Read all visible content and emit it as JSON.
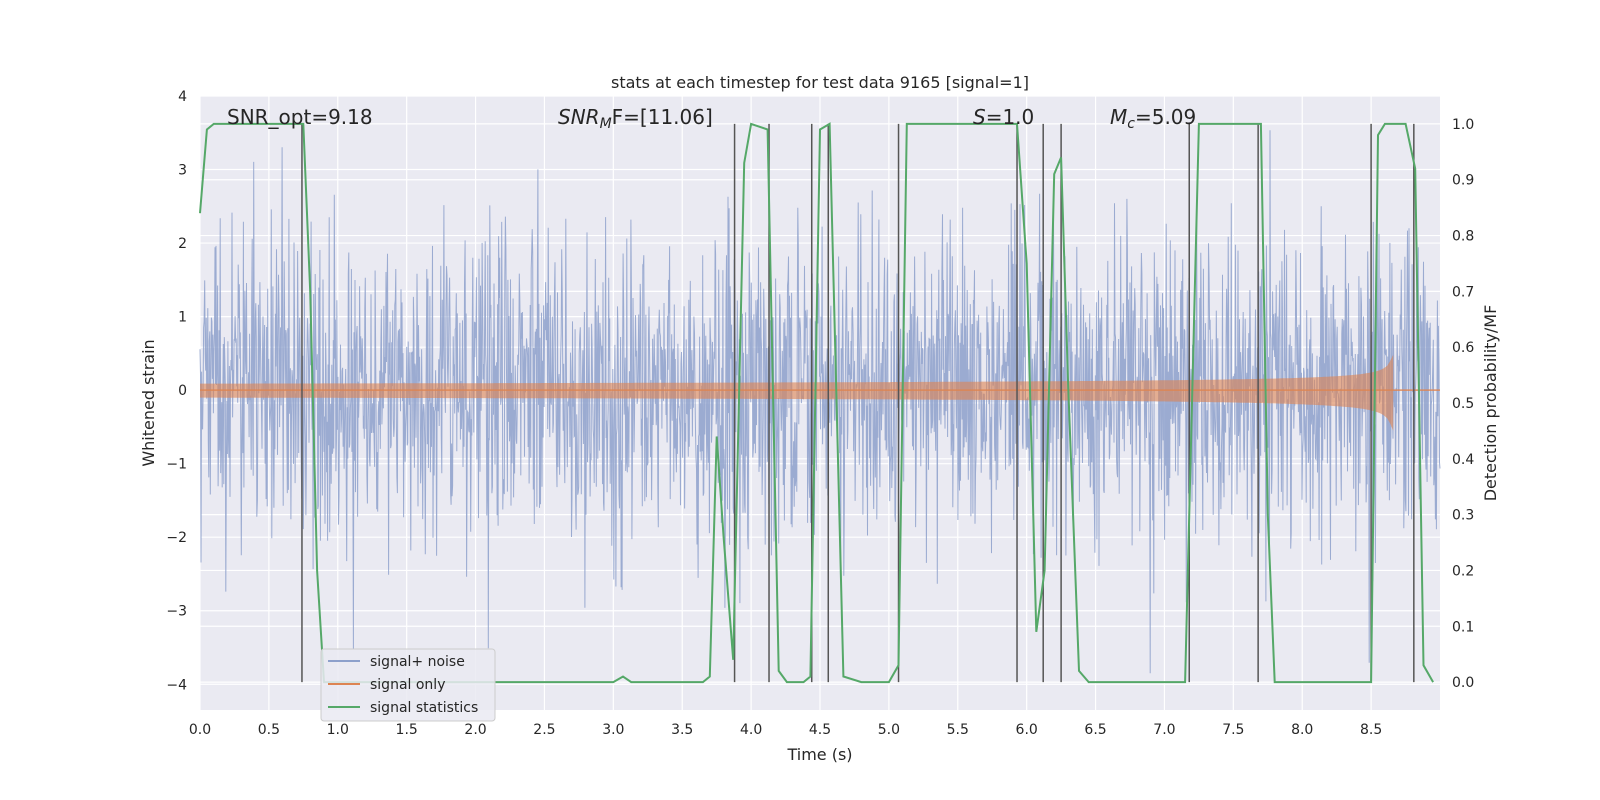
{
  "chart_data": {
    "type": "line",
    "title": "stats at each timestep for test data 9165 [signal=1]",
    "xlabel": "Time (s)",
    "ylabel": "Whitened strain",
    "y2label": "Detection probability/MF",
    "xlim": [
      0,
      9.0
    ],
    "ylim": [
      -4.35,
      4.0
    ],
    "y2lim": [
      -0.05,
      1.05
    ],
    "x_ticks": [
      0.0,
      0.5,
      1.0,
      1.5,
      2.0,
      2.5,
      3.0,
      3.5,
      4.0,
      4.5,
      5.0,
      5.5,
      6.0,
      6.5,
      7.0,
      7.5,
      8.0,
      8.5
    ],
    "x_tick_labels": [
      "0.0",
      "0.5",
      "1.0",
      "1.5",
      "2.0",
      "2.5",
      "3.0",
      "3.5",
      "4.0",
      "4.5",
      "5.0",
      "5.5",
      "6.0",
      "6.5",
      "7.0",
      "7.5",
      "8.0",
      "8.5"
    ],
    "y_ticks": [
      4,
      3,
      2,
      1,
      0,
      -1,
      -2,
      -3,
      -4
    ],
    "y_tick_labels": [
      "4",
      "3",
      "2",
      "1",
      "0",
      "−1",
      "−2",
      "−3",
      "−4"
    ],
    "y2_ticks": [
      1.0,
      0.9,
      0.8,
      0.7,
      0.6,
      0.5,
      0.4,
      0.3,
      0.2,
      0.1,
      0.0
    ],
    "y2_tick_labels": [
      "1.0",
      "0.9",
      "0.8",
      "0.7",
      "0.6",
      "0.5",
      "0.4",
      "0.3",
      "0.2",
      "0.1",
      "0.0"
    ],
    "grid": true,
    "legend_position": "lower-left",
    "annotations": {
      "snr_opt": "SNR_opt=9.18",
      "snr_mf_main": "SNR",
      "snr_mf_sub": "M",
      "snr_mf_rest": "F=[11.06]",
      "s_main": "S",
      "s_rest": "=1.0",
      "mc_main": "M",
      "mc_sub": "c",
      "mc_rest": "=5.09"
    },
    "series": [
      {
        "name": "signal+ noise",
        "color": "#8da0cb",
        "kind": "noise",
        "sigma": 1.0,
        "range": [
          -4.0,
          3.65
        ]
      },
      {
        "name": "signal only",
        "color": "#dd8452",
        "kind": "chirp",
        "merger_time": 8.66,
        "peak_amplitude": 0.8
      },
      {
        "name": "signal statistics",
        "color": "#55a868",
        "kind": "probability",
        "points": [
          [
            0.0,
            0.84
          ],
          [
            0.05,
            0.99
          ],
          [
            0.1,
            1.0
          ],
          [
            0.7,
            1.0
          ],
          [
            0.75,
            1.0
          ],
          [
            0.8,
            0.7
          ],
          [
            0.85,
            0.2
          ],
          [
            0.9,
            0.0
          ],
          [
            3.0,
            0.0
          ],
          [
            3.07,
            0.01
          ],
          [
            3.13,
            0.0
          ],
          [
            3.65,
            0.0
          ],
          [
            3.7,
            0.01
          ],
          [
            3.75,
            0.44
          ],
          [
            3.8,
            0.26
          ],
          [
            3.87,
            0.04
          ],
          [
            3.95,
            0.93
          ],
          [
            4.0,
            1.0
          ],
          [
            4.12,
            0.99
          ],
          [
            4.2,
            0.02
          ],
          [
            4.26,
            0.0
          ],
          [
            4.38,
            0.0
          ],
          [
            4.43,
            0.01
          ],
          [
            4.5,
            0.99
          ],
          [
            4.57,
            1.0
          ],
          [
            4.6,
            0.7
          ],
          [
            4.67,
            0.01
          ],
          [
            4.8,
            0.0
          ],
          [
            5.0,
            0.0
          ],
          [
            5.07,
            0.03
          ],
          [
            5.13,
            1.0
          ],
          [
            5.93,
            1.0
          ],
          [
            6.0,
            0.75
          ],
          [
            6.07,
            0.09
          ],
          [
            6.13,
            0.2
          ],
          [
            6.2,
            0.91
          ],
          [
            6.25,
            0.94
          ],
          [
            6.3,
            0.54
          ],
          [
            6.38,
            0.02
          ],
          [
            6.45,
            0.0
          ],
          [
            7.15,
            0.0
          ],
          [
            7.25,
            1.0
          ],
          [
            7.7,
            1.0
          ],
          [
            7.75,
            0.3
          ],
          [
            7.8,
            0.0
          ],
          [
            8.5,
            0.0
          ],
          [
            8.55,
            0.98
          ],
          [
            8.6,
            1.0
          ],
          [
            8.75,
            1.0
          ],
          [
            8.82,
            0.92
          ],
          [
            8.88,
            0.03
          ],
          [
            8.95,
            0.0
          ]
        ]
      }
    ],
    "vertical_markers": {
      "color": "#555555",
      "x": [
        0.74,
        3.88,
        4.13,
        4.44,
        4.56,
        5.07,
        5.93,
        6.12,
        6.25,
        7.18,
        7.68,
        8.5,
        8.81
      ]
    }
  }
}
